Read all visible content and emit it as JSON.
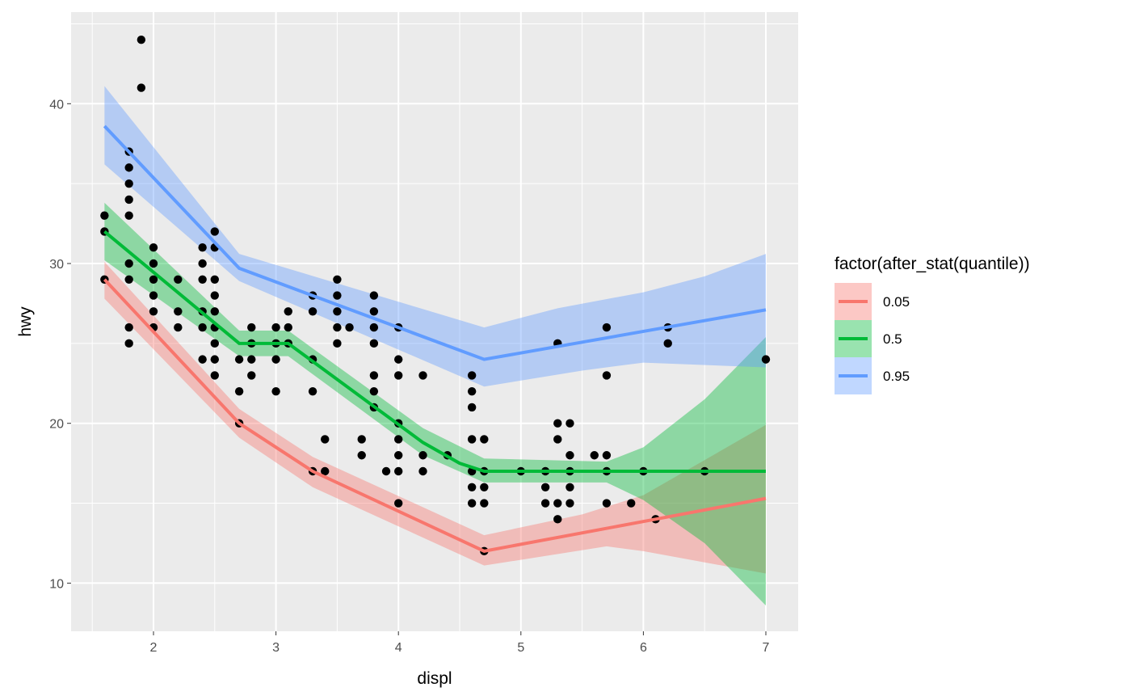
{
  "chart_data": {
    "type": "scatter",
    "title": "",
    "xlabel": "displ",
    "ylabel": "hwy",
    "xlim": [
      1.32,
      7.27
    ],
    "ylim": [
      7.0,
      45.8
    ],
    "xticks": [
      2,
      3,
      4,
      5,
      6,
      7
    ],
    "yticks": [
      10,
      20,
      30,
      40
    ],
    "xtick_labels": [
      "2",
      "3",
      "4",
      "5",
      "6",
      "7"
    ],
    "ytick_labels": [
      "10",
      "20",
      "30",
      "40"
    ],
    "legend": {
      "title": "factor(after_stat(quantile))",
      "placement": "right",
      "entries": [
        "0.05",
        "0.5",
        "0.95"
      ]
    },
    "points": [
      [
        1.6,
        33
      ],
      [
        1.6,
        32
      ],
      [
        1.6,
        29
      ],
      [
        1.8,
        37
      ],
      [
        1.8,
        36
      ],
      [
        1.8,
        35
      ],
      [
        1.8,
        34
      ],
      [
        1.8,
        33
      ],
      [
        1.8,
        30
      ],
      [
        1.8,
        29
      ],
      [
        1.8,
        26
      ],
      [
        1.8,
        25
      ],
      [
        1.9,
        44
      ],
      [
        1.9,
        41
      ],
      [
        2,
        31
      ],
      [
        2,
        30
      ],
      [
        2,
        29
      ],
      [
        2,
        28
      ],
      [
        2,
        27
      ],
      [
        2,
        26
      ],
      [
        2.2,
        29
      ],
      [
        2.2,
        27
      ],
      [
        2.2,
        26
      ],
      [
        2.4,
        31
      ],
      [
        2.4,
        30
      ],
      [
        2.4,
        29
      ],
      [
        2.4,
        27
      ],
      [
        2.4,
        26
      ],
      [
        2.4,
        24
      ],
      [
        2.5,
        32
      ],
      [
        2.5,
        31
      ],
      [
        2.5,
        29
      ],
      [
        2.5,
        28
      ],
      [
        2.5,
        27
      ],
      [
        2.5,
        26
      ],
      [
        2.5,
        25
      ],
      [
        2.5,
        24
      ],
      [
        2.5,
        23
      ],
      [
        2.7,
        24
      ],
      [
        2.7,
        22
      ],
      [
        2.7,
        20
      ],
      [
        2.8,
        26
      ],
      [
        2.8,
        25
      ],
      [
        2.8,
        24
      ],
      [
        2.8,
        23
      ],
      [
        3,
        26
      ],
      [
        3,
        25
      ],
      [
        3,
        24
      ],
      [
        3,
        22
      ],
      [
        3.1,
        27
      ],
      [
        3.1,
        26
      ],
      [
        3.1,
        25
      ],
      [
        3.3,
        28
      ],
      [
        3.3,
        27
      ],
      [
        3.3,
        24
      ],
      [
        3.3,
        22
      ],
      [
        3.3,
        17
      ],
      [
        3.4,
        19
      ],
      [
        3.4,
        17
      ],
      [
        3.5,
        29
      ],
      [
        3.5,
        28
      ],
      [
        3.5,
        27
      ],
      [
        3.5,
        26
      ],
      [
        3.5,
        25
      ],
      [
        3.6,
        26
      ],
      [
        3.7,
        19
      ],
      [
        3.7,
        18
      ],
      [
        3.8,
        28
      ],
      [
        3.8,
        27
      ],
      [
        3.8,
        26
      ],
      [
        3.8,
        25
      ],
      [
        3.8,
        23
      ],
      [
        3.8,
        22
      ],
      [
        3.8,
        21
      ],
      [
        3.9,
        17
      ],
      [
        4,
        26
      ],
      [
        4,
        24
      ],
      [
        4,
        23
      ],
      [
        4,
        20
      ],
      [
        4,
        19
      ],
      [
        4,
        18
      ],
      [
        4,
        17
      ],
      [
        4,
        15
      ],
      [
        4.2,
        23
      ],
      [
        4.2,
        18
      ],
      [
        4.2,
        17
      ],
      [
        4.4,
        18
      ],
      [
        4.6,
        23
      ],
      [
        4.6,
        22
      ],
      [
        4.6,
        21
      ],
      [
        4.6,
        19
      ],
      [
        4.6,
        17
      ],
      [
        4.6,
        16
      ],
      [
        4.6,
        15
      ],
      [
        4.7,
        19
      ],
      [
        4.7,
        17
      ],
      [
        4.7,
        16
      ],
      [
        4.7,
        15
      ],
      [
        4.7,
        12
      ],
      [
        5,
        17
      ],
      [
        5.2,
        17
      ],
      [
        5.2,
        16
      ],
      [
        5.2,
        15
      ],
      [
        5.3,
        25
      ],
      [
        5.3,
        20
      ],
      [
        5.3,
        19
      ],
      [
        5.3,
        15
      ],
      [
        5.3,
        14
      ],
      [
        5.4,
        20
      ],
      [
        5.4,
        18
      ],
      [
        5.4,
        17
      ],
      [
        5.4,
        16
      ],
      [
        5.4,
        15
      ],
      [
        5.6,
        18
      ],
      [
        5.7,
        26
      ],
      [
        5.7,
        23
      ],
      [
        5.7,
        18
      ],
      [
        5.7,
        17
      ],
      [
        5.7,
        15
      ],
      [
        5.9,
        15
      ],
      [
        6,
        17
      ],
      [
        6.1,
        14
      ],
      [
        6.2,
        26
      ],
      [
        6.2,
        25
      ],
      [
        6.5,
        17
      ],
      [
        7,
        24
      ]
    ],
    "series": [
      {
        "name": "0.05",
        "color": "#F8766D",
        "line": [
          [
            1.6,
            29
          ],
          [
            2.7,
            20
          ],
          [
            3.3,
            17
          ],
          [
            4.7,
            12
          ],
          [
            6.1,
            14
          ],
          [
            7,
            15.3
          ]
        ],
        "upper": [
          [
            1.6,
            30.1
          ],
          [
            2.7,
            20.9
          ],
          [
            3.3,
            17.9
          ],
          [
            4.7,
            13
          ],
          [
            5.5,
            14.3
          ],
          [
            6,
            15.5
          ],
          [
            7,
            19.9
          ]
        ],
        "lower": [
          [
            1.6,
            27.8
          ],
          [
            2.7,
            19.1
          ],
          [
            3.3,
            16
          ],
          [
            4.7,
            11.1
          ],
          [
            5.7,
            12.3
          ],
          [
            6,
            12
          ],
          [
            7,
            10.6
          ]
        ]
      },
      {
        "name": "0.5",
        "color": "#00BA38",
        "line": [
          [
            1.6,
            32
          ],
          [
            2.7,
            25
          ],
          [
            3.1,
            25
          ],
          [
            4.2,
            18.8
          ],
          [
            4.5,
            17.5
          ],
          [
            4.7,
            17
          ],
          [
            7,
            17
          ]
        ],
        "upper": [
          [
            1.6,
            33.8
          ],
          [
            2.7,
            25.8
          ],
          [
            3.1,
            25.8
          ],
          [
            4.2,
            19.7
          ],
          [
            4.7,
            17.8
          ],
          [
            5.7,
            17.6
          ],
          [
            6,
            18.5
          ],
          [
            6.5,
            21.5
          ],
          [
            7,
            25.4
          ]
        ],
        "lower": [
          [
            1.6,
            30.2
          ],
          [
            2.7,
            24.2
          ],
          [
            3.1,
            24.2
          ],
          [
            4.2,
            18
          ],
          [
            4.7,
            16.3
          ],
          [
            5.7,
            16.3
          ],
          [
            6,
            15.2
          ],
          [
            6.5,
            12.5
          ],
          [
            7,
            8.6
          ]
        ]
      },
      {
        "name": "0.95",
        "color": "#619CFF",
        "line": [
          [
            1.6,
            38.6
          ],
          [
            2.7,
            29.7
          ],
          [
            4.7,
            24
          ],
          [
            7,
            27.1
          ]
        ],
        "upper": [
          [
            1.6,
            41.1
          ],
          [
            2.7,
            30.6
          ],
          [
            4.7,
            26
          ],
          [
            5.3,
            27.2
          ],
          [
            6,
            28.2
          ],
          [
            6.5,
            29.2
          ],
          [
            7,
            30.6
          ]
        ],
        "lower": [
          [
            1.6,
            36.2
          ],
          [
            2.7,
            28.9
          ],
          [
            4.7,
            22.3
          ],
          [
            5.5,
            23.3
          ],
          [
            6,
            23.8
          ],
          [
            7,
            23.5
          ]
        ]
      }
    ]
  }
}
